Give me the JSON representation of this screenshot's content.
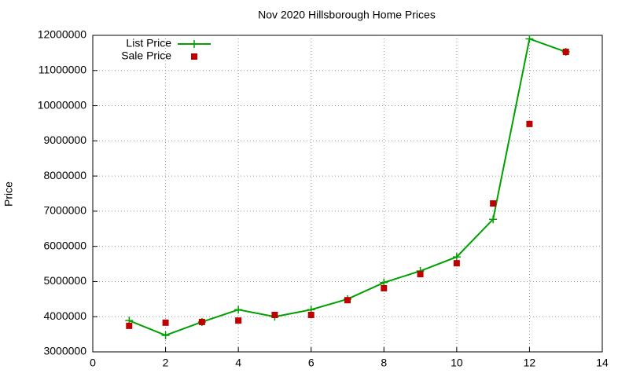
{
  "chart_data": {
    "type": "line",
    "title": "Nov 2020 Hillsborough Home Prices",
    "y_label": "Price",
    "x": [
      1,
      2,
      3,
      4,
      5,
      6,
      7,
      8,
      9,
      10,
      11,
      12,
      13
    ],
    "series": [
      {
        "name": "List Price",
        "color": "#00a000",
        "line": true,
        "marker": "plus",
        "values": [
          3890000,
          3470000,
          3850000,
          4200000,
          4000000,
          4200000,
          4500000,
          4970000,
          5300000,
          5700000,
          6770000,
          11900000,
          11530000
        ]
      },
      {
        "name": "Sale Price",
        "color": "#c00000",
        "line": false,
        "marker": "square",
        "values": [
          3740000,
          3830000,
          3850000,
          3890000,
          4050000,
          4050000,
          4470000,
          4810000,
          5210000,
          5520000,
          7220000,
          9480000,
          11530000
        ]
      }
    ],
    "xlim": [
      0,
      14
    ],
    "xticks": [
      0,
      2,
      4,
      6,
      8,
      10,
      12,
      14
    ],
    "ylim": [
      3000000,
      12000000
    ],
    "yticks": [
      3000000,
      4000000,
      5000000,
      6000000,
      7000000,
      8000000,
      9000000,
      10000000,
      11000000,
      12000000
    ],
    "grid": true,
    "legend": "top-left"
  }
}
